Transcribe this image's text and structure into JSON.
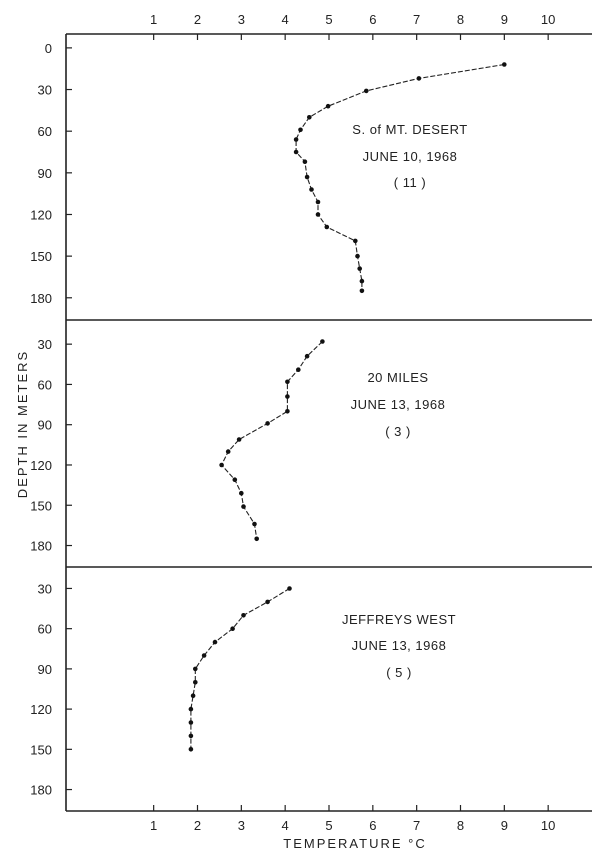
{
  "chart_data": {
    "type": "line",
    "xlabel": "TEMPERATURE °C",
    "ylabel": "DEPTH IN METERS",
    "x_ticks": [
      "1",
      "2",
      "3",
      "4",
      "5",
      "6",
      "7",
      "8",
      "9",
      "10"
    ],
    "xlim": [
      -1,
      11
    ],
    "grid": false,
    "panels": [
      {
        "annotation": [
          "S. of MT. DESERT",
          "JUNE 10, 1968",
          "( 11 )"
        ],
        "y_ticks": [
          "0",
          "30",
          "60",
          "90",
          "120",
          "150",
          "180"
        ],
        "ylim": [
          -10,
          196
        ],
        "series": [
          {
            "x": [
              9.0,
              7.05,
              5.85,
              4.98,
              4.55,
              4.35,
              4.25,
              4.25,
              4.45,
              4.5,
              4.6,
              4.75,
              4.75,
              4.95,
              5.6,
              5.65,
              5.7,
              5.75,
              5.75
            ],
            "y": [
              12,
              22,
              31,
              42,
              50,
              59,
              66,
              75,
              82,
              93,
              102,
              111,
              120,
              129,
              139,
              150,
              159,
              168,
              175
            ]
          }
        ]
      },
      {
        "annotation": [
          "20 MILES",
          "JUNE 13, 1968",
          "( 3 )"
        ],
        "y_ticks": [
          "30",
          "60",
          "90",
          "120",
          "150",
          "180"
        ],
        "ylim": [
          12,
          196
        ],
        "series": [
          {
            "x": [
              4.85,
              4.5,
              4.3,
              4.05,
              4.05,
              4.05,
              3.6,
              2.95,
              2.7,
              2.55,
              2.85,
              3.0,
              3.05,
              3.3,
              3.35
            ],
            "y": [
              28,
              39,
              49,
              58,
              69,
              80,
              89,
              101,
              110,
              120,
              131,
              141,
              151,
              164,
              175
            ]
          }
        ]
      },
      {
        "annotation": [
          "JEFFREYS WEST",
          "JUNE 13, 1968",
          "( 5 )"
        ],
        "y_ticks": [
          "30",
          "60",
          "90",
          "120",
          "150",
          "180"
        ],
        "ylim": [
          14,
          196
        ],
        "series": [
          {
            "x": [
              4.1,
              3.6,
              3.05,
              2.8,
              2.4,
              2.15,
              1.95,
              1.95,
              1.9,
              1.85,
              1.85,
              1.85,
              1.85
            ],
            "y": [
              30,
              40,
              50,
              60,
              70,
              80,
              90,
              100,
              110,
              120,
              130,
              140,
              150
            ]
          }
        ]
      }
    ]
  }
}
